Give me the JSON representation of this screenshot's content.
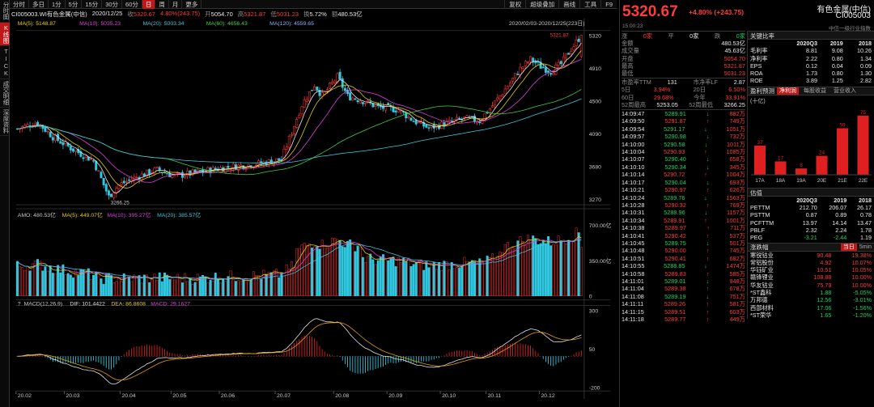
{
  "vtabs": [
    "分时图",
    "K线图",
    "TICK",
    "成交明细",
    "深度资料"
  ],
  "vtab_active": 1,
  "toolbar": {
    "left": [
      "分时",
      "多日",
      "1分",
      "5分",
      "15分",
      "30分",
      "60分",
      "日",
      "周",
      "月",
      "更多"
    ],
    "active": 7,
    "right": [
      "复权",
      "超级叠加",
      "画线",
      "工具",
      "F9"
    ]
  },
  "info": {
    "code": "CI005003.WI有色金属(中信)",
    "date": "2020/12/25",
    "close_label": "收",
    "close": "5320.67",
    "pct": "4.80%(243.75)",
    "open_label": "开",
    "open": "5054.70",
    "high_label": "高",
    "high": "5321.87",
    "low_label": "低",
    "low": "5031.23",
    "turnover_label": "换",
    "turnover": "5.72%",
    "amount_label": "额",
    "amount": "480.53亿"
  },
  "ma": {
    "ma5": "MA(5): 5148.87",
    "ma10": "MA(10): 5035.23",
    "ma20": "MA(20): 5003.34",
    "ma60": "MA(60): 4656.43",
    "ma120": "MA(120): 4559.65"
  },
  "range_label": "2020/02/03-2020/12/25(223日)",
  "price_axis": [
    "5320",
    "4910",
    "4500",
    "4090",
    "3680",
    "3270"
  ],
  "max_label": "5321.87",
  "min_label": "3266.25",
  "amo": {
    "amo": "AMO: 480.53亿",
    "ma5": "MA(5): 449.07亿",
    "ma10": "MA(10): 395.27亿",
    "ma20": "MA(20): 385.57亿",
    "axis": [
      "700.00亿",
      "350.00亿",
      "0"
    ]
  },
  "macd": {
    "name": "MACD(12,26,9)",
    "dif": "DIF: 101.4422",
    "dea": "DEA: 86.8608",
    "macd": "MACD: 29.1627",
    "axis": [
      "300",
      "50",
      "-200"
    ],
    "help": "?"
  },
  "months": [
    "20.02",
    "20.03",
    "20.04",
    "20.05",
    "20.06",
    "20.07",
    "20.08",
    "20.09",
    "20.10",
    "20.11",
    "20.12"
  ],
  "chart_data": {
    "type": "candlestick",
    "title": "CI005003.WI有色金属(中信)",
    "x_range": [
      "2020/02/03",
      "2020/12/25"
    ],
    "ylim": [
      3266.25,
      5321.87
    ],
    "monthly_close_approx": [
      {
        "m": "20.02",
        "v": 4150
      },
      {
        "m": "20.03",
        "v": 3680
      },
      {
        "m": "20.04",
        "v": 3560
      },
      {
        "m": "20.05",
        "v": 3620
      },
      {
        "m": "20.06",
        "v": 3720
      },
      {
        "m": "20.07",
        "v": 4550
      },
      {
        "m": "20.08",
        "v": 4480
      },
      {
        "m": "20.09",
        "v": 4170
      },
      {
        "m": "20.10",
        "v": 4240
      },
      {
        "m": "20.11",
        "v": 4850
      },
      {
        "m": "20.12",
        "v": 5320.67
      }
    ]
  },
  "quote": {
    "price": "5320.67",
    "change": "+4.80% (+243.75)",
    "name": "有色金属(中信)",
    "code": "CI005003",
    "time": "15:00:23",
    "industry": "中信一级行业指数"
  },
  "updown": {
    "label_up": "涨",
    "up_cnt": "0家",
    "label_flat": "平",
    "flat_cnt": "0家",
    "label_down": "跌",
    "down_cnt": "0家"
  },
  "stats": [
    {
      "k": "金额",
      "v": "480.53亿",
      "c": "white"
    },
    {
      "k": "成交量",
      "v": "45.63亿",
      "c": "white"
    },
    {
      "k": "开盘",
      "v": "5054.70",
      "c": "red"
    },
    {
      "k": "最高",
      "v": "5321.87",
      "c": "red"
    },
    {
      "k": "最低",
      "v": "5031.23",
      "c": "red"
    }
  ],
  "stats2": [
    {
      "k1": "市盈率TTM",
      "v1": "131",
      "k2": "市净率LF",
      "v2": "2.87",
      "c": "white"
    },
    {
      "k1": "5日",
      "v1": "3.94%",
      "k2": "20日",
      "v2": "6.50%",
      "c": "red"
    },
    {
      "k1": "60日",
      "v1": "29.68%",
      "k2": "今年",
      "v2": "33.91%",
      "c": "red"
    },
    {
      "k1": "52周最高",
      "v1": "5253.05",
      "k2": "52周最低",
      "v2": "3266.25",
      "c": "white"
    }
  ],
  "ticks": [
    {
      "t": "14:09:47",
      "p": "5289.91",
      "d": "down",
      "v": "882万"
    },
    {
      "t": "14:09:50",
      "p": "5291.87",
      "d": "up",
      "v": "749万"
    },
    {
      "t": "14:09:54",
      "p": "5291.17",
      "d": "down",
      "v": "1051万"
    },
    {
      "t": "14:09:57",
      "p": "5290.98",
      "d": "down",
      "v": "732万"
    },
    {
      "t": "14:10:00",
      "p": "5290.58",
      "d": "down",
      "v": "1011万"
    },
    {
      "t": "14:10:04",
      "p": "5290.93",
      "d": "up",
      "v": "1085万"
    },
    {
      "t": "14:10:07",
      "p": "5290.40",
      "d": "down",
      "v": "658万"
    },
    {
      "t": "14:10:10",
      "p": "5290.34",
      "d": "down",
      "v": "345万"
    },
    {
      "t": "14:10:14",
      "p": "5290.72",
      "d": "up",
      "v": "1004万"
    },
    {
      "t": "14:10:17",
      "p": "5290.04",
      "d": "down",
      "v": "693万"
    },
    {
      "t": "14:10:21",
      "p": "5290.97",
      "d": "up",
      "v": "626万"
    },
    {
      "t": "14:10:24",
      "p": "5289.76",
      "d": "down",
      "v": "1563万"
    },
    {
      "t": "14:10:28",
      "p": "5290.32",
      "d": "up",
      "v": "769万"
    },
    {
      "t": "14:10:31",
      "p": "5288.96",
      "d": "down",
      "v": "1157万"
    },
    {
      "t": "14:10:34",
      "p": "5289.91",
      "d": "up",
      "v": "1001万"
    },
    {
      "t": "14:10:38",
      "p": "5289.97",
      "d": "up",
      "v": "711万"
    },
    {
      "t": "14:10:41",
      "p": "5290.42",
      "d": "up",
      "v": "537万"
    },
    {
      "t": "14:10:45",
      "p": "5289.75",
      "d": "down",
      "v": "501万"
    },
    {
      "t": "14:10:48",
      "p": "5290.00",
      "d": "up",
      "v": "745万"
    },
    {
      "t": "14:10:51",
      "p": "5290.41",
      "d": "up",
      "v": "682万"
    },
    {
      "t": "14:10:55",
      "p": "5288.85",
      "d": "down",
      "v": "1474万"
    },
    {
      "t": "14:10:58",
      "p": "5289.83",
      "d": "up",
      "v": "585万"
    },
    {
      "t": "14:11:01",
      "p": "5289.01",
      "d": "down",
      "v": "948万"
    },
    {
      "t": "14:11:04",
      "p": "5289.38",
      "d": "up",
      "v": "678万"
    },
    {
      "t": "14:11:08",
      "p": "5289.19",
      "d": "down",
      "v": "751万"
    },
    {
      "t": "14:11:11",
      "p": "5289.26",
      "d": "up",
      "v": "581万"
    },
    {
      "t": "14:11:15",
      "p": "5289.51",
      "d": "up",
      "v": "603万"
    },
    {
      "t": "14:11:18",
      "p": "5289.77",
      "d": "up",
      "v": "449万"
    }
  ],
  "key_ratio": {
    "title": "关键比率",
    "cols": [
      "2020Q3",
      "2019",
      "2018"
    ],
    "rows": [
      {
        "k": "毛利率",
        "v": [
          "8.81",
          "9.08",
          "10.26"
        ]
      },
      {
        "k": "净利率",
        "v": [
          "2.22",
          "0.80",
          "1.34"
        ]
      },
      {
        "k": "EPS",
        "v": [
          "0.12",
          "0.04",
          "0.09"
        ]
      },
      {
        "k": "ROA",
        "v": [
          "1.73",
          "0.80",
          "1.30"
        ]
      },
      {
        "k": "ROE",
        "v": [
          "3.89",
          "1.25",
          "2.82"
        ]
      }
    ]
  },
  "profit": {
    "title": "盈利预测",
    "tabs": [
      "净利润",
      "每股收益",
      "营业收入"
    ],
    "unit": "(十亿)",
    "bars": [
      {
        "x": "17A",
        "v": 37
      },
      {
        "x": "18A",
        "v": 17
      },
      {
        "x": "19A",
        "v": 8
      },
      {
        "x": "20E",
        "v": 24
      },
      {
        "x": "21E",
        "v": 59
      },
      {
        "x": "22E",
        "v": 75
      }
    ]
  },
  "valuation": {
    "title": "估值",
    "cols": [
      "2020Q3",
      "2019",
      "2018"
    ],
    "rows": [
      {
        "k": "PETTM",
        "v": [
          "212.70",
          "206.07",
          "26.17"
        ]
      },
      {
        "k": "PSTTM",
        "v": [
          "0.87",
          "0.89",
          "0.78"
        ]
      },
      {
        "k": "PCFTTM",
        "v": [
          "13.97",
          "14.14",
          "13.47"
        ]
      },
      {
        "k": "PBLF",
        "v": [
          "2.32",
          "2.24",
          "1.78"
        ]
      },
      {
        "k": "PEG",
        "v": [
          "-3.21",
          "-2.44",
          "1.19"
        ]
      }
    ]
  },
  "gainers": {
    "title": "涨跌幅",
    "tabs": [
      "当日",
      "5min"
    ],
    "rows": [
      {
        "n": "寒锐钴业",
        "p": "90.48",
        "c": "19.38%",
        "d": "up"
      },
      {
        "n": "常铝股份",
        "p": "4.92",
        "c": "10.07%",
        "d": "up"
      },
      {
        "n": "华钰矿业",
        "p": "10.51",
        "c": "10.05%",
        "d": "up"
      },
      {
        "n": "赣锋锂业",
        "p": "108.88",
        "c": "10.00%",
        "d": "up"
      },
      {
        "n": "华友钴业",
        "p": "75.79",
        "c": "10.00%",
        "d": "up"
      },
      {
        "n": "*ST鑫科",
        "p": "1.88",
        "c": "-5.05%",
        "d": "down"
      },
      {
        "n": "万邦德",
        "p": "12.56",
        "c": "-3.01%",
        "d": "down"
      },
      {
        "n": "西部材料",
        "p": "17.06",
        "c": "-1.56%",
        "d": "down"
      },
      {
        "n": "*ST荣华",
        "p": "1.65",
        "c": "-1.20%",
        "d": "down"
      }
    ]
  }
}
